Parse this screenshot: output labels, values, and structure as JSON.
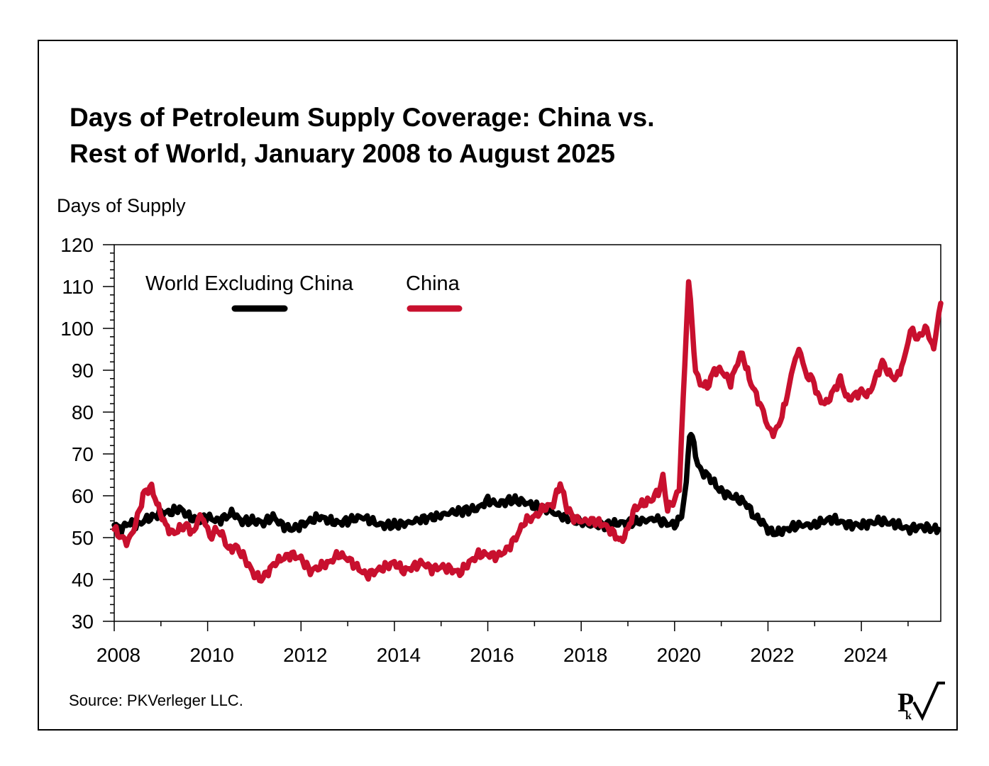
{
  "title_lines": [
    "Days of Petroleum Supply Coverage: China vs.",
    "Rest of World, January 2008 to August 2025"
  ],
  "source": "Source: PKVerleger LLC.",
  "logo": {
    "main": "P",
    "sub": "k"
  },
  "chart_data": {
    "type": "line",
    "ylabel": "Days of Supply",
    "xlabel": "",
    "ylim": [
      30,
      120
    ],
    "xlim": [
      2008.0,
      2025.7
    ],
    "yticks": [
      "30",
      "40",
      "50",
      "60",
      "70",
      "80",
      "90",
      "100",
      "110",
      "120"
    ],
    "xticks": [
      "2008",
      "2010",
      "2012",
      "2014",
      "2016",
      "2018",
      "2020",
      "2022",
      "2024"
    ],
    "grid": false,
    "legend": "top-left",
    "series": [
      {
        "name": "World Excluding China",
        "color": "#000000",
        "points": [
          [
            2008.0,
            53
          ],
          [
            2008.15,
            52
          ],
          [
            2008.3,
            53.5
          ],
          [
            2008.5,
            53
          ],
          [
            2008.7,
            54.5
          ],
          [
            2008.85,
            55
          ],
          [
            2009.0,
            56
          ],
          [
            2009.2,
            56
          ],
          [
            2009.4,
            57
          ],
          [
            2009.6,
            55
          ],
          [
            2009.8,
            54
          ],
          [
            2010.0,
            55
          ],
          [
            2010.2,
            54
          ],
          [
            2010.4,
            55
          ],
          [
            2010.55,
            56
          ],
          [
            2010.7,
            54
          ],
          [
            2011.0,
            54
          ],
          [
            2011.2,
            53.5
          ],
          [
            2011.4,
            55
          ],
          [
            2011.6,
            53
          ],
          [
            2011.8,
            52
          ],
          [
            2012.0,
            53
          ],
          [
            2012.2,
            54
          ],
          [
            2012.4,
            55
          ],
          [
            2012.6,
            54
          ],
          [
            2012.8,
            53.5
          ],
          [
            2013.0,
            54
          ],
          [
            2013.3,
            55
          ],
          [
            2013.5,
            54
          ],
          [
            2013.7,
            53
          ],
          [
            2014.0,
            53
          ],
          [
            2014.3,
            53.5
          ],
          [
            2014.6,
            54.5
          ],
          [
            2014.9,
            55
          ],
          [
            2015.2,
            56
          ],
          [
            2015.5,
            56.5
          ],
          [
            2015.8,
            57
          ],
          [
            2016.0,
            59
          ],
          [
            2016.2,
            58
          ],
          [
            2016.5,
            59
          ],
          [
            2016.8,
            58.5
          ],
          [
            2017.0,
            57.5
          ],
          [
            2017.3,
            56.5
          ],
          [
            2017.6,
            55
          ],
          [
            2017.9,
            54
          ],
          [
            2018.2,
            53
          ],
          [
            2018.5,
            53
          ],
          [
            2018.8,
            53.5
          ],
          [
            2019.0,
            53.5
          ],
          [
            2019.3,
            54
          ],
          [
            2019.6,
            54.5
          ],
          [
            2019.8,
            53.5
          ],
          [
            2020.0,
            53
          ],
          [
            2020.15,
            55
          ],
          [
            2020.25,
            63
          ],
          [
            2020.32,
            75
          ],
          [
            2020.38,
            74
          ],
          [
            2020.45,
            70
          ],
          [
            2020.55,
            66
          ],
          [
            2020.7,
            65
          ],
          [
            2020.85,
            63
          ],
          [
            2021.0,
            61
          ],
          [
            2021.2,
            60
          ],
          [
            2021.4,
            59
          ],
          [
            2021.55,
            58
          ],
          [
            2021.7,
            55
          ],
          [
            2021.85,
            54
          ],
          [
            2022.0,
            52
          ],
          [
            2022.15,
            51
          ],
          [
            2022.3,
            51.5
          ],
          [
            2022.5,
            52.5
          ],
          [
            2022.7,
            53
          ],
          [
            2023.0,
            53
          ],
          [
            2023.2,
            54
          ],
          [
            2023.4,
            54.5
          ],
          [
            2023.6,
            53.5
          ],
          [
            2023.8,
            53
          ],
          [
            2024.0,
            53
          ],
          [
            2024.2,
            53.5
          ],
          [
            2024.4,
            54
          ],
          [
            2024.6,
            53.5
          ],
          [
            2024.8,
            53
          ],
          [
            2025.0,
            52
          ],
          [
            2025.2,
            52.5
          ],
          [
            2025.4,
            52.5
          ],
          [
            2025.55,
            52
          ],
          [
            2025.65,
            52
          ]
        ]
      },
      {
        "name": "China",
        "color": "#c8102e",
        "points": [
          [
            2008.0,
            52
          ],
          [
            2008.15,
            50
          ],
          [
            2008.3,
            49
          ],
          [
            2008.45,
            53
          ],
          [
            2008.55,
            57
          ],
          [
            2008.65,
            61
          ],
          [
            2008.8,
            62
          ],
          [
            2008.95,
            57
          ],
          [
            2009.1,
            53
          ],
          [
            2009.25,
            51
          ],
          [
            2009.4,
            52
          ],
          [
            2009.55,
            53
          ],
          [
            2009.7,
            51
          ],
          [
            2009.8,
            55
          ],
          [
            2009.95,
            54
          ],
          [
            2010.05,
            50
          ],
          [
            2010.2,
            52
          ],
          [
            2010.35,
            50
          ],
          [
            2010.45,
            47
          ],
          [
            2010.6,
            48
          ],
          [
            2010.8,
            45
          ],
          [
            2011.0,
            41
          ],
          [
            2011.15,
            40
          ],
          [
            2011.3,
            42
          ],
          [
            2011.45,
            44
          ],
          [
            2011.6,
            45
          ],
          [
            2011.8,
            46
          ],
          [
            2012.0,
            45
          ],
          [
            2012.2,
            42
          ],
          [
            2012.4,
            43
          ],
          [
            2012.6,
            44
          ],
          [
            2012.8,
            46
          ],
          [
            2013.0,
            45
          ],
          [
            2013.2,
            43
          ],
          [
            2013.4,
            41
          ],
          [
            2013.6,
            42
          ],
          [
            2013.8,
            43
          ],
          [
            2014.0,
            44
          ],
          [
            2014.2,
            42
          ],
          [
            2014.4,
            43
          ],
          [
            2014.6,
            44
          ],
          [
            2014.8,
            42.5
          ],
          [
            2015.0,
            43
          ],
          [
            2015.2,
            42.5
          ],
          [
            2015.4,
            41.5
          ],
          [
            2015.6,
            44
          ],
          [
            2015.8,
            46
          ],
          [
            2016.0,
            46
          ],
          [
            2016.2,
            45.5
          ],
          [
            2016.4,
            47
          ],
          [
            2016.6,
            50
          ],
          [
            2016.8,
            54
          ],
          [
            2017.0,
            55
          ],
          [
            2017.2,
            57
          ],
          [
            2017.4,
            58
          ],
          [
            2017.55,
            63
          ],
          [
            2017.7,
            57
          ],
          [
            2017.8,
            55
          ],
          [
            2018.0,
            54
          ],
          [
            2018.3,
            54
          ],
          [
            2018.5,
            53
          ],
          [
            2018.7,
            51
          ],
          [
            2018.85,
            49
          ],
          [
            2019.0,
            52
          ],
          [
            2019.15,
            57
          ],
          [
            2019.3,
            58
          ],
          [
            2019.5,
            59
          ],
          [
            2019.65,
            61
          ],
          [
            2019.75,
            64
          ],
          [
            2019.85,
            57
          ],
          [
            2020.0,
            59
          ],
          [
            2020.1,
            62
          ],
          [
            2020.15,
            75
          ],
          [
            2020.22,
            91
          ],
          [
            2020.3,
            112
          ],
          [
            2020.38,
            100
          ],
          [
            2020.45,
            90
          ],
          [
            2020.55,
            87
          ],
          [
            2020.7,
            86
          ],
          [
            2020.85,
            90
          ],
          [
            2021.0,
            90
          ],
          [
            2021.2,
            87
          ],
          [
            2021.35,
            92
          ],
          [
            2021.45,
            94
          ],
          [
            2021.6,
            88
          ],
          [
            2021.75,
            84
          ],
          [
            2021.9,
            80
          ],
          [
            2022.0,
            76
          ],
          [
            2022.15,
            75
          ],
          [
            2022.3,
            79
          ],
          [
            2022.45,
            86
          ],
          [
            2022.55,
            92
          ],
          [
            2022.7,
            95
          ],
          [
            2022.8,
            89
          ],
          [
            2022.95,
            88
          ],
          [
            2023.1,
            83
          ],
          [
            2023.25,
            82
          ],
          [
            2023.4,
            85
          ],
          [
            2023.55,
            88
          ],
          [
            2023.7,
            83
          ],
          [
            2023.85,
            84
          ],
          [
            2024.0,
            85
          ],
          [
            2024.15,
            84
          ],
          [
            2024.3,
            88
          ],
          [
            2024.45,
            92
          ],
          [
            2024.6,
            89
          ],
          [
            2024.75,
            88
          ],
          [
            2024.9,
            92
          ],
          [
            2025.0,
            97
          ],
          [
            2025.1,
            100
          ],
          [
            2025.2,
            97
          ],
          [
            2025.3,
            99
          ],
          [
            2025.4,
            100
          ],
          [
            2025.5,
            96
          ],
          [
            2025.55,
            95
          ],
          [
            2025.62,
            101
          ],
          [
            2025.7,
            106
          ]
        ]
      }
    ]
  }
}
